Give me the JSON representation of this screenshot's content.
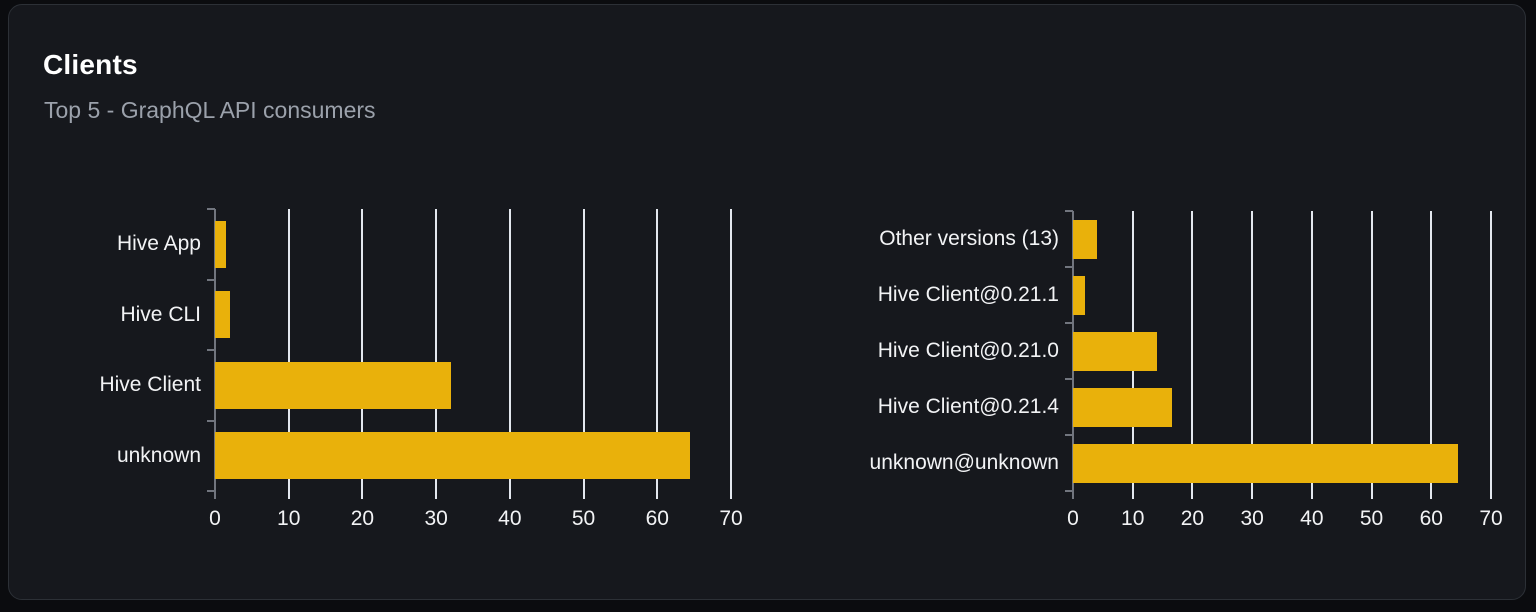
{
  "header": {
    "title": "Clients",
    "subtitle": "Top 5 - GraphQL API consumers"
  },
  "colors": {
    "page_bg": "#0b0c0f",
    "card_bg": "#16181d",
    "card_border": "#2c3036",
    "bar": "#e9b10b",
    "gridline": "#e3e7ee",
    "axis": "#71757e",
    "title_text": "#ffffff",
    "subtitle_text": "#9ba1ab",
    "label_text": "#f2f3f5"
  },
  "chart_data": [
    {
      "type": "bar",
      "orientation": "horizontal",
      "name": "clients-top5",
      "categories": [
        "Hive App",
        "Hive CLI",
        "Hive Client",
        "unknown"
      ],
      "values": [
        1.5,
        2,
        32,
        64.5
      ],
      "xlim": [
        0,
        70
      ],
      "xticks": [
        0,
        10,
        20,
        30,
        40,
        50,
        60,
        70
      ],
      "grid": true,
      "legend": "none",
      "bar_color": "#e9b10b"
    },
    {
      "type": "bar",
      "orientation": "horizontal",
      "name": "client-versions",
      "categories": [
        "Other versions (13)",
        "Hive Client@0.21.1",
        "Hive Client@0.21.0",
        "Hive Client@0.21.4",
        "unknown@unknown"
      ],
      "values": [
        4,
        2,
        14,
        16.5,
        64.5
      ],
      "xlim": [
        0,
        70
      ],
      "xticks": [
        0,
        10,
        20,
        30,
        40,
        50,
        60,
        70
      ],
      "grid": true,
      "legend": "none",
      "bar_color": "#e9b10b"
    }
  ]
}
